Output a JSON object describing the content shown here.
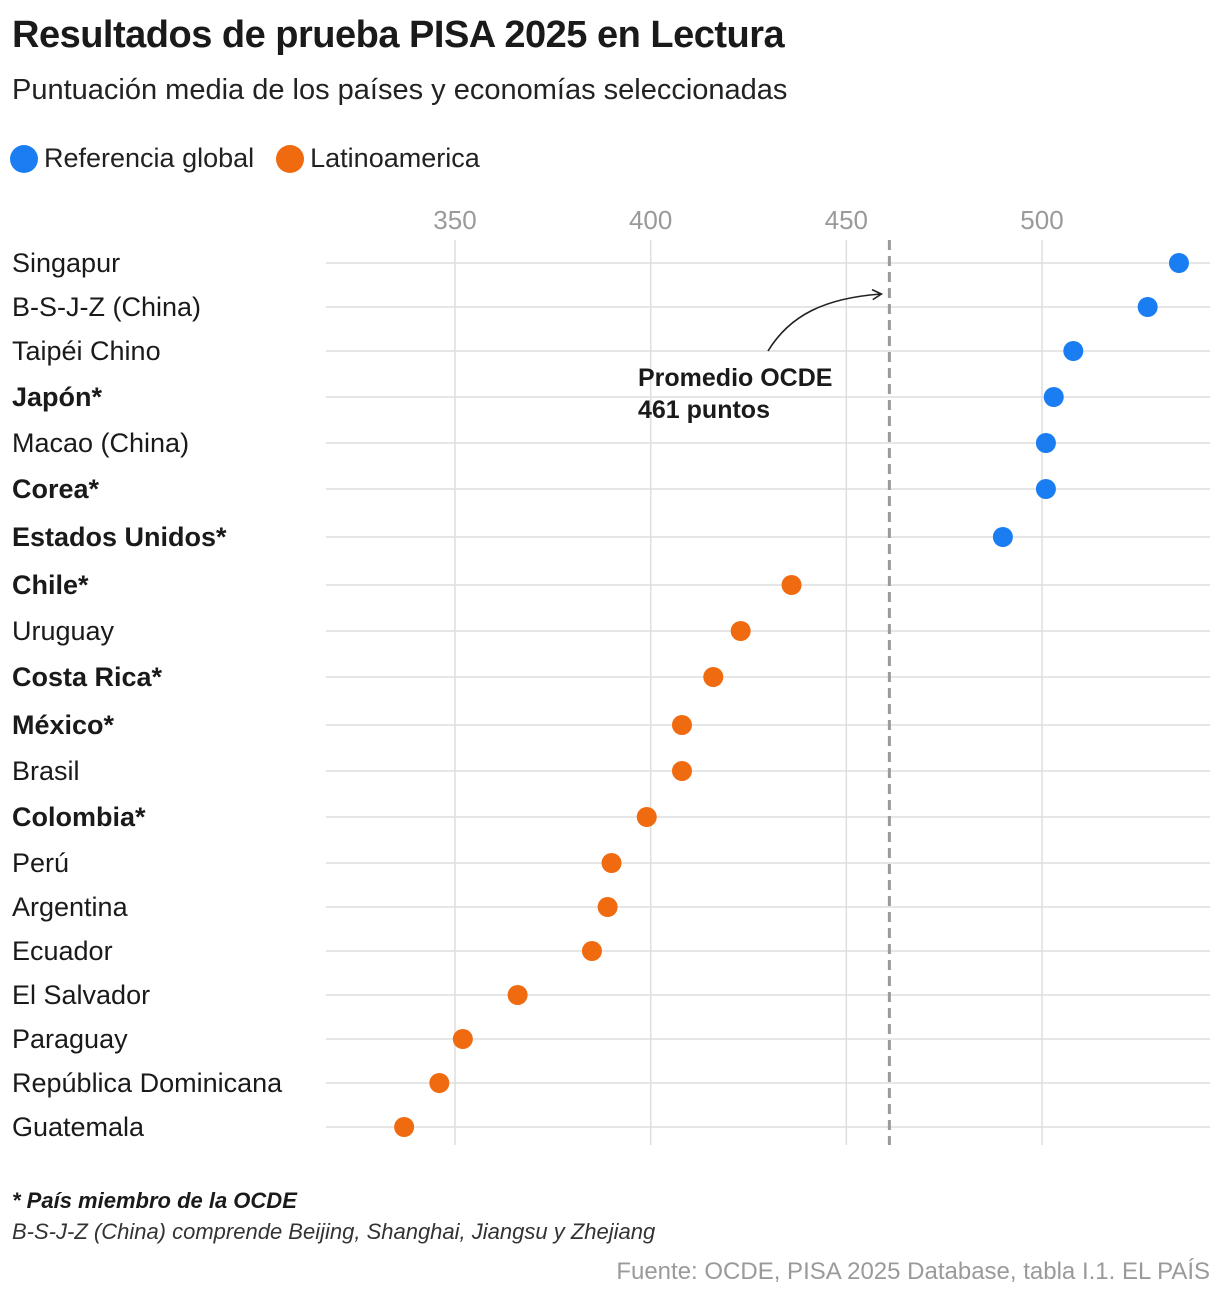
{
  "title": "Resultados de prueba PISA 2025 en Lectura",
  "subtitle": "Puntuación media de los países y economías seleccionadas",
  "legend": [
    {
      "label": "Referencia global",
      "color": "#1a7ef2"
    },
    {
      "label": "Latinoamerica",
      "color": "#f06a0f"
    }
  ],
  "footnote": "* País miembro de la OCDE",
  "footnote2": "B-S-J-Z (China) comprende Beijing, Shanghai, Jiangsu y Zhejiang",
  "source": "Fuente: OCDE, PISA 2025 Database, tabla I.1. EL PAÍS",
  "annotation": {
    "line1": "Promedio OCDE",
    "line2": "461 puntos",
    "value": 461
  },
  "chart_data": {
    "type": "scatter",
    "xlim": [
      317,
      542
    ],
    "xticks": [
      350,
      400,
      450,
      500
    ],
    "grid": true,
    "categories": [
      "Singapur",
      "B-S-J-Z (China)",
      "Taipéi Chino",
      "Japón*",
      "Macao (China)",
      "Corea*",
      "Estados Unidos*",
      "Chile*",
      "Uruguay",
      "Costa Rica*",
      "México*",
      "Brasil",
      "Colombia*",
      "Perú",
      "Argentina",
      "Ecuador",
      "El Salvador",
      "Paraguay",
      "República Dominicana",
      "Guatemala"
    ],
    "bold": [
      false,
      false,
      false,
      true,
      false,
      true,
      true,
      true,
      false,
      true,
      true,
      false,
      true,
      false,
      false,
      false,
      false,
      false,
      false,
      false
    ],
    "series": [
      {
        "name": "Referencia global",
        "color": "#1a7ef2",
        "values": [
          535,
          527,
          508,
          503,
          501,
          501,
          490,
          null,
          null,
          null,
          null,
          null,
          null,
          null,
          null,
          null,
          null,
          null,
          null,
          null
        ]
      },
      {
        "name": "Latinoamerica",
        "color": "#f06a0f",
        "values": [
          null,
          null,
          null,
          null,
          null,
          null,
          null,
          436,
          423,
          416,
          408,
          408,
          399,
          390,
          389,
          385,
          366,
          352,
          346,
          337
        ]
      }
    ]
  }
}
